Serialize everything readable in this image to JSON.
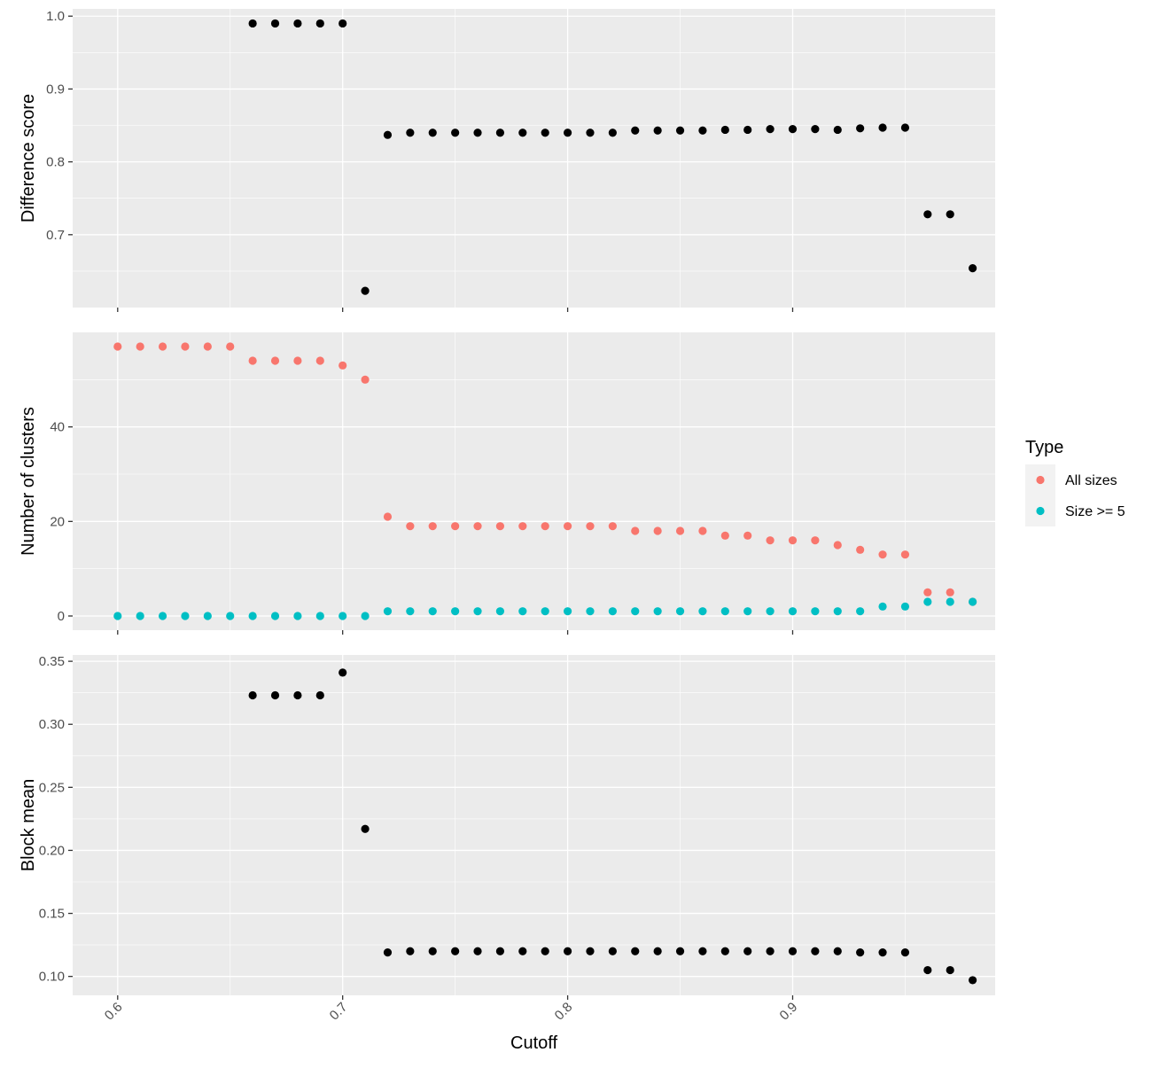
{
  "chart_data": {
    "type": "scatter",
    "layout": "faceted-vertical",
    "xlabel": "Cutoff",
    "xlim": [
      0.58,
      0.99
    ],
    "x_ticks": [
      0.6,
      0.7,
      0.8,
      0.9
    ],
    "x_tick_labels": [
      "0.6",
      "0.7",
      "0.8",
      "0.9"
    ],
    "grid": true,
    "background": "#EBEBEB",
    "legend": {
      "title": "Type",
      "placement": "right",
      "entries": [
        {
          "label": "All sizes",
          "color": "#F8766D"
        },
        {
          "label": "Size >= 5",
          "color": "#00BFC4"
        }
      ]
    },
    "panels": [
      {
        "ylabel": "Difference score",
        "ylim": [
          0.6,
          1.01
        ],
        "y_ticks": [
          0.7,
          0.8,
          0.9,
          1.0
        ],
        "y_tick_labels": [
          "0.7",
          "0.8",
          "0.9",
          "1.0"
        ],
        "series": [
          {
            "color": "#000000",
            "x": [
              0.66,
              0.67,
              0.68,
              0.69,
              0.7,
              0.71,
              0.72,
              0.73,
              0.74,
              0.75,
              0.76,
              0.77,
              0.78,
              0.79,
              0.8,
              0.81,
              0.82,
              0.83,
              0.84,
              0.85,
              0.86,
              0.87,
              0.88,
              0.89,
              0.9,
              0.91,
              0.92,
              0.93,
              0.94,
              0.95,
              0.96,
              0.97,
              0.98
            ],
            "y": [
              0.99,
              0.99,
              0.99,
              0.99,
              0.99,
              0.623,
              0.837,
              0.84,
              0.84,
              0.84,
              0.84,
              0.84,
              0.84,
              0.84,
              0.84,
              0.84,
              0.84,
              0.843,
              0.843,
              0.843,
              0.843,
              0.844,
              0.844,
              0.845,
              0.845,
              0.845,
              0.844,
              0.846,
              0.847,
              0.847,
              0.728,
              0.728,
              0.654
            ]
          }
        ]
      },
      {
        "ylabel": "Number of clusters",
        "ylim": [
          -3,
          60
        ],
        "y_ticks": [
          0,
          20,
          40
        ],
        "y_tick_labels": [
          "0",
          "20",
          "40"
        ],
        "series": [
          {
            "name": "All sizes",
            "color": "#F8766D",
            "x": [
              0.6,
              0.61,
              0.62,
              0.63,
              0.64,
              0.65,
              0.66,
              0.67,
              0.68,
              0.69,
              0.7,
              0.71,
              0.72,
              0.73,
              0.74,
              0.75,
              0.76,
              0.77,
              0.78,
              0.79,
              0.8,
              0.81,
              0.82,
              0.83,
              0.84,
              0.85,
              0.86,
              0.87,
              0.88,
              0.89,
              0.9,
              0.91,
              0.92,
              0.93,
              0.94,
              0.95,
              0.96,
              0.97,
              0.98
            ],
            "y": [
              57,
              57,
              57,
              57,
              57,
              57,
              54,
              54,
              54,
              54,
              53,
              50,
              21,
              19,
              19,
              19,
              19,
              19,
              19,
              19,
              19,
              19,
              19,
              18,
              18,
              18,
              18,
              17,
              17,
              16,
              16,
              16,
              15,
              14,
              13,
              13,
              5,
              5,
              3
            ]
          },
          {
            "name": "Size >= 5",
            "color": "#00BFC4",
            "x": [
              0.6,
              0.61,
              0.62,
              0.63,
              0.64,
              0.65,
              0.66,
              0.67,
              0.68,
              0.69,
              0.7,
              0.71,
              0.72,
              0.73,
              0.74,
              0.75,
              0.76,
              0.77,
              0.78,
              0.79,
              0.8,
              0.81,
              0.82,
              0.83,
              0.84,
              0.85,
              0.86,
              0.87,
              0.88,
              0.89,
              0.9,
              0.91,
              0.92,
              0.93,
              0.94,
              0.95,
              0.96,
              0.97,
              0.98
            ],
            "y": [
              0,
              0,
              0,
              0,
              0,
              0,
              0,
              0,
              0,
              0,
              0,
              0,
              1,
              1,
              1,
              1,
              1,
              1,
              1,
              1,
              1,
              1,
              1,
              1,
              1,
              1,
              1,
              1,
              1,
              1,
              1,
              1,
              1,
              1,
              2,
              2,
              3,
              3,
              3
            ]
          }
        ]
      },
      {
        "ylabel": "Block mean",
        "ylim": [
          0.085,
          0.355
        ],
        "y_ticks": [
          0.1,
          0.15,
          0.2,
          0.25,
          0.3,
          0.35
        ],
        "y_tick_labels": [
          "0.10",
          "0.15",
          "0.20",
          "0.25",
          "0.30",
          "0.35"
        ],
        "series": [
          {
            "color": "#000000",
            "x": [
              0.66,
              0.67,
              0.68,
              0.69,
              0.7,
              0.71,
              0.72,
              0.73,
              0.74,
              0.75,
              0.76,
              0.77,
              0.78,
              0.79,
              0.8,
              0.81,
              0.82,
              0.83,
              0.84,
              0.85,
              0.86,
              0.87,
              0.88,
              0.89,
              0.9,
              0.91,
              0.92,
              0.93,
              0.94,
              0.95,
              0.96,
              0.97,
              0.98
            ],
            "y": [
              0.323,
              0.323,
              0.323,
              0.323,
              0.341,
              0.217,
              0.119,
              0.12,
              0.12,
              0.12,
              0.12,
              0.12,
              0.12,
              0.12,
              0.12,
              0.12,
              0.12,
              0.12,
              0.12,
              0.12,
              0.12,
              0.12,
              0.12,
              0.12,
              0.12,
              0.12,
              0.12,
              0.119,
              0.119,
              0.119,
              0.105,
              0.105,
              0.097
            ]
          }
        ]
      }
    ]
  }
}
